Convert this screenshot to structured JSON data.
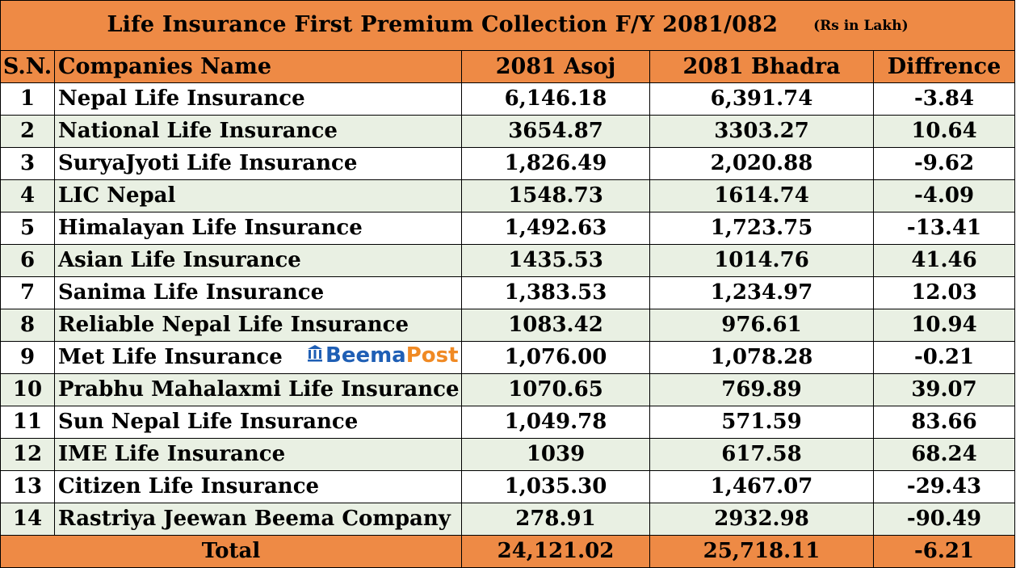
{
  "title": "Life Insurance  First Premium Collection   F/Y 2081/082",
  "unit": "(Rs in Lakh)",
  "headers": {
    "sn": "S.N.",
    "company": "Companies Name",
    "asoj": "2081 Asoj",
    "bhadra": "2081 Bhadra",
    "difference": "Diffrence"
  },
  "rows": [
    {
      "sn": "1",
      "company": "Nepal Life Insurance",
      "asoj": "6,146.18",
      "bhadra": "6,391.74",
      "difference": "-3.84"
    },
    {
      "sn": "2",
      "company": "National Life Insurance",
      "asoj": "3654.87",
      "bhadra": "3303.27",
      "difference": "10.64"
    },
    {
      "sn": "3",
      "company": "SuryaJyoti Life Insurance",
      "asoj": "1,826.49",
      "bhadra": "2,020.88",
      "difference": "-9.62"
    },
    {
      "sn": "4",
      "company": "LIC Nepal",
      "asoj": "1548.73",
      "bhadra": "1614.74",
      "difference": "-4.09"
    },
    {
      "sn": "5",
      "company": "Himalayan Life Insurance",
      "asoj": "1,492.63",
      "bhadra": "1,723.75",
      "difference": "-13.41"
    },
    {
      "sn": "6",
      "company": "Asian  Life Insurance",
      "asoj": "1435.53",
      "bhadra": "1014.76",
      "difference": "41.46"
    },
    {
      "sn": "7",
      "company": "Sanima Life Insurance",
      "asoj": "1,383.53",
      "bhadra": "1,234.97",
      "difference": "12.03"
    },
    {
      "sn": "8",
      "company": "Reliable Nepal  Life Insurance",
      "asoj": "1083.42",
      "bhadra": "976.61",
      "difference": "10.94"
    },
    {
      "sn": "9",
      "company": "Met Life Insurance",
      "asoj": "1,076.00",
      "bhadra": "1,078.28",
      "difference": "-0.21"
    },
    {
      "sn": "10",
      "company": "Prabhu Mahalaxmi Life Insurance",
      "asoj": "1070.65",
      "bhadra": "769.89",
      "difference": "39.07"
    },
    {
      "sn": "11",
      "company": "Sun Nepal  Life Insurance",
      "asoj": "1,049.78",
      "bhadra": "571.59",
      "difference": "83.66"
    },
    {
      "sn": "12",
      "company": "IME  Life Insurance",
      "asoj": "1039",
      "bhadra": "617.58",
      "difference": "68.24"
    },
    {
      "sn": "13",
      "company": "Citizen Life Insurance",
      "asoj": "1,035.30",
      "bhadra": "1,467.07",
      "difference": "-29.43"
    },
    {
      "sn": "14",
      "company": "Rastriya Jeewan Beema Company",
      "asoj": "278.91",
      "bhadra": "2932.98",
      "difference": "-90.49"
    }
  ],
  "total": {
    "label": "Total",
    "asoj": "24,121.02",
    "bhadra": "25,718.11",
    "difference": "-6.21"
  },
  "watermark": {
    "part1": "Beema",
    "part2": "Post",
    "icon": "bank-icon"
  },
  "colors": {
    "header_bg": "#ee8a45",
    "even_row_bg": "#e9f0e3",
    "odd_row_bg": "#ffffff",
    "brand_blue": "#1f5fb5",
    "brand_orange": "#f08a24"
  }
}
